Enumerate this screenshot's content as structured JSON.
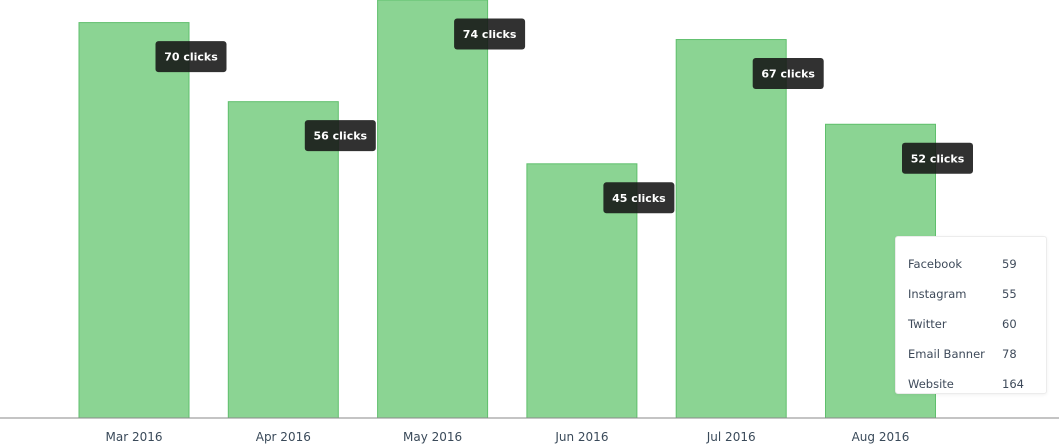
{
  "chart_data": {
    "type": "bar",
    "categories": [
      "Mar 2016",
      "Apr 2016",
      "May 2016",
      "Jun 2016",
      "Jul 2016",
      "Aug 2016"
    ],
    "values": [
      70,
      56,
      74,
      45,
      67,
      52
    ],
    "data_labels": [
      "70 clicks",
      "56 clicks",
      "74 clicks",
      "45 clicks",
      "67 clicks",
      "52 clicks"
    ],
    "ylim": [
      0,
      74
    ],
    "grid": false,
    "bar_color": "#8bd493",
    "bar_edge_color": "#5fbf6c",
    "label_bg_color": "#1e1e1e"
  },
  "legend": {
    "placement": "bottom-right",
    "items": [
      {
        "label": "Facebook",
        "value": "59"
      },
      {
        "label": "Instagram",
        "value": "55"
      },
      {
        "label": "Twitter",
        "value": "60"
      },
      {
        "label": "Email Banner",
        "value": "78"
      },
      {
        "label": "Website",
        "value": "164"
      }
    ]
  }
}
